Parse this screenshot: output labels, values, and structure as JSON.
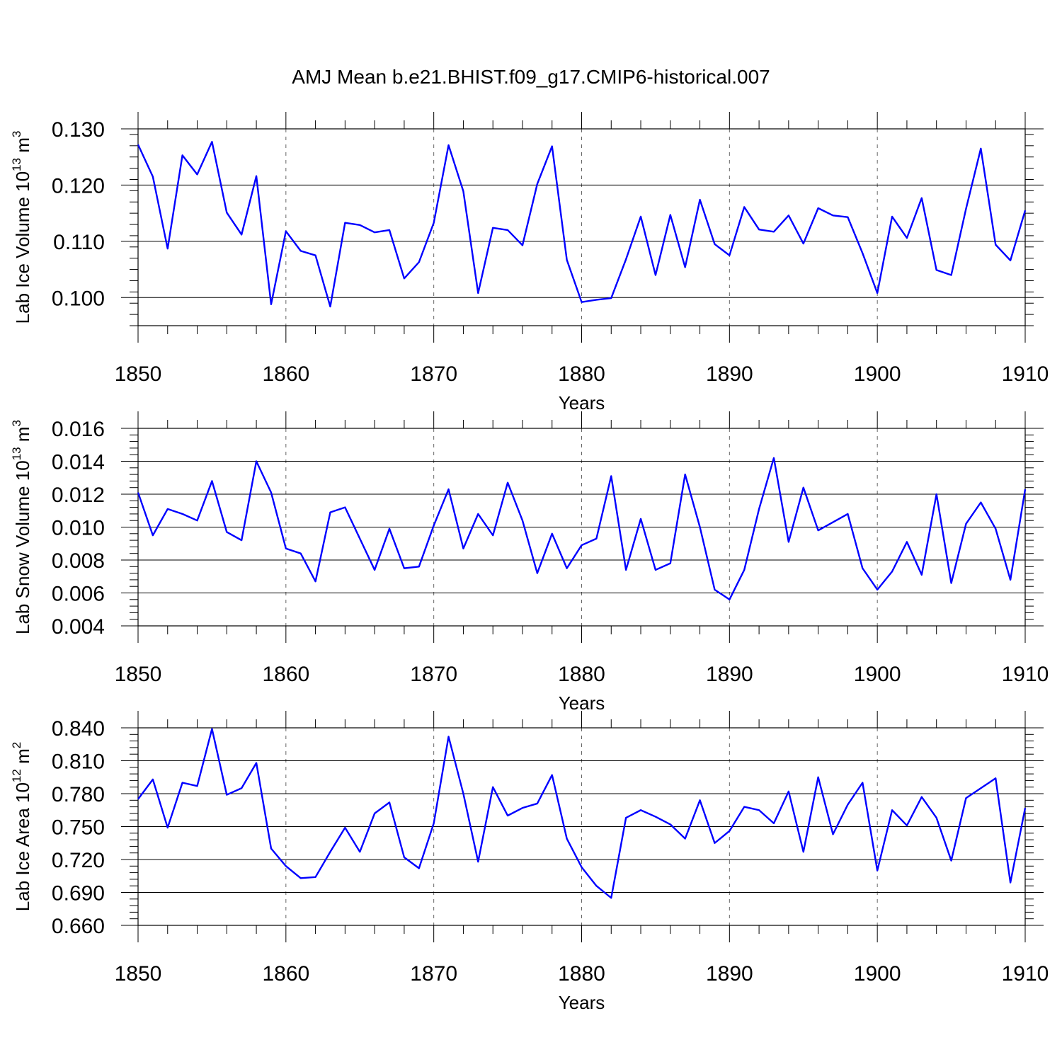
{
  "title": "AMJ Mean b.e21.BHIST.f09_g17.CMIP6-historical.007",
  "line_color": "#0000ff",
  "chart_data": [
    {
      "type": "line",
      "title": "AMJ Mean b.e21.BHIST.f09_g17.CMIP6-historical.007",
      "xlabel": "Years",
      "ylabel": "Lab Ice Volume 10",
      "ylabel_sup": "13",
      "ylabel_unit": " m",
      "ylabel_unit_sup": "3",
      "xlim": [
        1850,
        1910
      ],
      "ylim": [
        0.095,
        0.13
      ],
      "yticks": [
        0.1,
        0.11,
        0.12,
        0.13
      ],
      "ytick_labels": [
        "0.100",
        "0.110",
        "0.120",
        "0.130"
      ],
      "xticks": [
        1850,
        1860,
        1870,
        1880,
        1890,
        1900,
        1910
      ],
      "xtick_labels": [
        "1850",
        "1860",
        "1870",
        "1880",
        "1890",
        "1900",
        "1910"
      ],
      "x_start": 1850,
      "values": [
        0.1272,
        0.1215,
        0.1087,
        0.1253,
        0.1219,
        0.1277,
        0.1151,
        0.1112,
        0.1216,
        0.0988,
        0.1118,
        0.1083,
        0.1075,
        0.0984,
        0.1133,
        0.1129,
        0.1116,
        0.112,
        0.1034,
        0.1063,
        0.1133,
        0.1271,
        0.1189,
        0.1008,
        0.1124,
        0.112,
        0.1093,
        0.1202,
        0.1269,
        0.1067,
        0.0992,
        0.0996,
        0.0999,
        0.1068,
        0.1144,
        0.104,
        0.1147,
        0.1054,
        0.1174,
        0.1095,
        0.1075,
        0.1161,
        0.1121,
        0.1117,
        0.1146,
        0.1096,
        0.1159,
        0.1146,
        0.1143,
        0.1079,
        0.1008,
        0.1144,
        0.1106,
        0.1177,
        0.1049,
        0.104,
        0.1158,
        0.1265,
        0.1094,
        0.1066,
        0.1155
      ]
    },
    {
      "type": "line",
      "xlabel": "Years",
      "ylabel": "Lab Snow Volume 10",
      "ylabel_sup": "13",
      "ylabel_unit": " m",
      "ylabel_unit_sup": "3",
      "xlim": [
        1850,
        1910
      ],
      "ylim": [
        0.004,
        0.016
      ],
      "yticks": [
        0.004,
        0.006,
        0.008,
        0.01,
        0.012,
        0.014,
        0.016
      ],
      "ytick_labels": [
        "0.004",
        "0.006",
        "0.008",
        "0.010",
        "0.012",
        "0.014",
        "0.016"
      ],
      "xticks": [
        1850,
        1860,
        1870,
        1880,
        1890,
        1900,
        1910
      ],
      "xtick_labels": [
        "1850",
        "1860",
        "1870",
        "1880",
        "1890",
        "1900",
        "1910"
      ],
      "x_start": 1850,
      "values": [
        0.0121,
        0.0095,
        0.0111,
        0.0108,
        0.0104,
        0.0128,
        0.0097,
        0.0092,
        0.014,
        0.0121,
        0.0087,
        0.0084,
        0.0067,
        0.0109,
        0.0112,
        0.0093,
        0.0074,
        0.0099,
        0.0075,
        0.0076,
        0.0101,
        0.0123,
        0.0087,
        0.0108,
        0.0095,
        0.0127,
        0.0104,
        0.0072,
        0.0096,
        0.0075,
        0.0089,
        0.0093,
        0.0131,
        0.0074,
        0.0105,
        0.0074,
        0.0078,
        0.0132,
        0.01,
        0.0062,
        0.0056,
        0.0074,
        0.0111,
        0.0142,
        0.0091,
        0.0124,
        0.0098,
        0.0103,
        0.0108,
        0.0075,
        0.0062,
        0.0073,
        0.0091,
        0.0071,
        0.012,
        0.0066,
        0.0102,
        0.0115,
        0.0099,
        0.0068,
        0.0123
      ]
    },
    {
      "type": "line",
      "xlabel": "Years",
      "ylabel": "Lab Ice Area 10",
      "ylabel_sup": "12",
      "ylabel_unit": " m",
      "ylabel_unit_sup": "2",
      "xlim": [
        1850,
        1910
      ],
      "ylim": [
        0.66,
        0.84
      ],
      "yticks": [
        0.66,
        0.69,
        0.72,
        0.75,
        0.78,
        0.81,
        0.84
      ],
      "ytick_labels": [
        "0.660",
        "0.690",
        "0.720",
        "0.750",
        "0.780",
        "0.810",
        "0.840"
      ],
      "xticks": [
        1850,
        1860,
        1870,
        1880,
        1890,
        1900,
        1910
      ],
      "xtick_labels": [
        "1850",
        "1860",
        "1870",
        "1880",
        "1890",
        "1900",
        "1910"
      ],
      "x_start": 1850,
      "values": [
        0.775,
        0.793,
        0.749,
        0.79,
        0.787,
        0.839,
        0.779,
        0.785,
        0.808,
        0.73,
        0.714,
        0.703,
        0.704,
        0.727,
        0.749,
        0.727,
        0.762,
        0.772,
        0.722,
        0.712,
        0.753,
        0.832,
        0.78,
        0.718,
        0.786,
        0.76,
        0.767,
        0.771,
        0.797,
        0.739,
        0.713,
        0.696,
        0.685,
        0.758,
        0.765,
        0.759,
        0.752,
        0.739,
        0.774,
        0.735,
        0.746,
        0.768,
        0.765,
        0.753,
        0.782,
        0.727,
        0.795,
        0.743,
        0.77,
        0.79,
        0.71,
        0.765,
        0.751,
        0.777,
        0.758,
        0.719,
        0.776,
        0.785,
        0.794,
        0.699,
        0.767
      ]
    }
  ]
}
